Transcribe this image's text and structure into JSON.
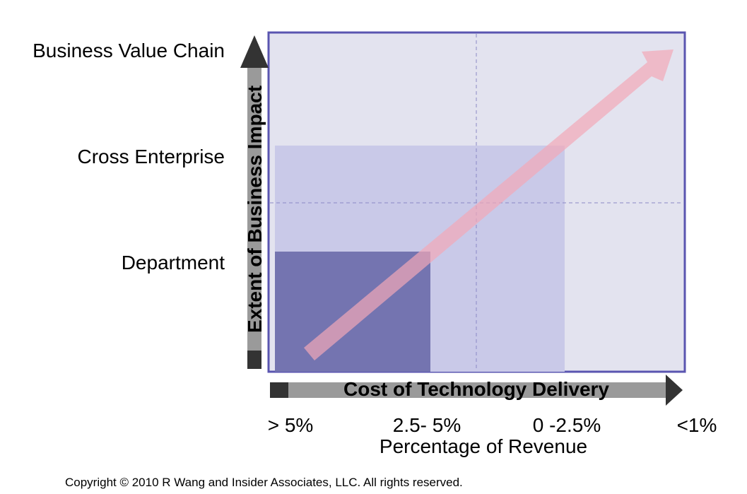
{
  "y_axis": {
    "title": "Extent of Business Impact",
    "levels": [
      "Business Value Chain",
      "Cross Enterprise",
      "Department"
    ]
  },
  "x_axis": {
    "title": "Cost of Technology Delivery",
    "ticks": [
      "> 5%",
      "2.5- 5%",
      "0 -2.5%",
      "<1%"
    ],
    "subtitle": "Percentage of Revenue"
  },
  "copyright": "Copyright © 2010 R Wang and Insider Associates, LLC. All rights reserved.",
  "colors": {
    "plot_bg": "#e3e3ef",
    "plot_border": "#5a55b0",
    "large_region": "#c9c9e8",
    "small_region": "#7474b0",
    "trend_arrow": "#f2a8b8",
    "axis_arrow_dark": "#333333",
    "axis_arrow_gray": "#9a9a9a"
  }
}
